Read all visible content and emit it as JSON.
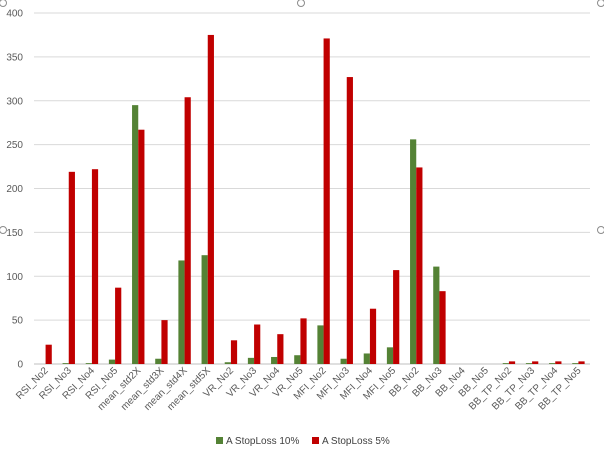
{
  "chart_data": {
    "type": "bar",
    "title": "",
    "xlabel": "",
    "ylabel": "",
    "ylim": [
      0,
      400
    ],
    "yticks": [
      0,
      50,
      100,
      150,
      200,
      250,
      300,
      350,
      400
    ],
    "grid": true,
    "legend_position": "bottom",
    "categories": [
      "RSI_No2",
      "RSI_No3",
      "RSI_No4",
      "RSI_No5",
      "mean_std2X",
      "mean_std3X",
      "mean_std4X",
      "mean_std5X",
      "VR_No2",
      "VR_No3",
      "VR_No4",
      "VR_No5",
      "MFI_No2",
      "MFI_No3",
      "MFI_No4",
      "MFI_No5",
      "BB_No2",
      "BB_No3",
      "BB_No4",
      "BB_No5",
      "BB_TP_No2",
      "BB_TP_No3",
      "BB_TP_No4",
      "BB_TP_No5"
    ],
    "series": [
      {
        "name": "A StopLoss 10%",
        "color": "#548235",
        "values": [
          0,
          1,
          1,
          5,
          295,
          6,
          118,
          124,
          2,
          7,
          8,
          10,
          44,
          6,
          12,
          19,
          256,
          111,
          0,
          0,
          1,
          1,
          1,
          1
        ]
      },
      {
        "name": "A StopLoss 5%",
        "color": "#c00000",
        "values": [
          22,
          219,
          222,
          87,
          267,
          50,
          304,
          375,
          27,
          45,
          34,
          52,
          371,
          327,
          63,
          107,
          224,
          83,
          0,
          0,
          3,
          3,
          3,
          3
        ]
      }
    ]
  }
}
